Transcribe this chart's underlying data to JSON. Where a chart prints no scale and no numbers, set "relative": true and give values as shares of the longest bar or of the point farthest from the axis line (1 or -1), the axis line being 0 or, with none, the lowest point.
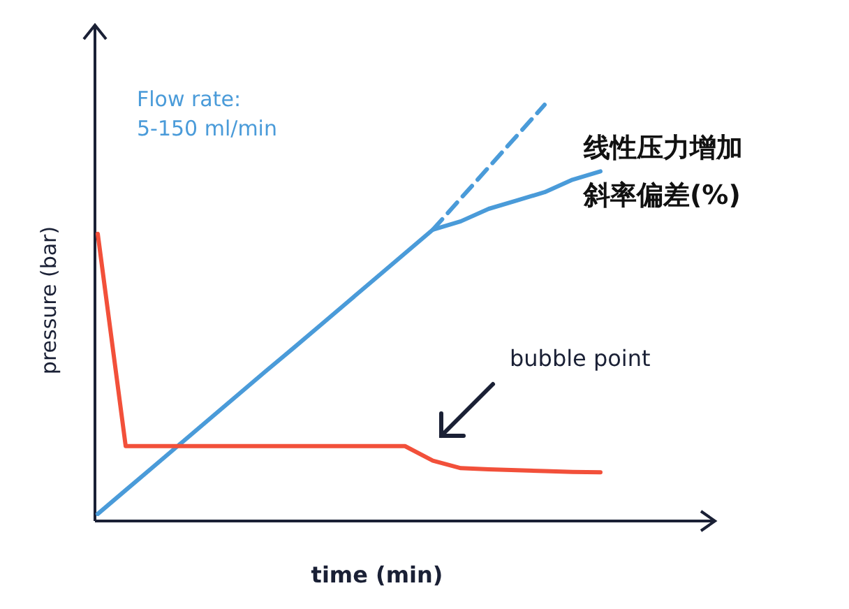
{
  "chart_data": {
    "type": "line",
    "relative": true,
    "xlabel": "time (min)",
    "ylabel": "pressure (bar)",
    "categories": [
      null,
      null,
      null,
      null,
      null,
      null,
      null,
      null,
      null,
      null,
      null,
      null,
      null,
      null,
      null,
      null,
      null,
      null,
      null,
      null,
      null
    ],
    "annotations": [
      "Flow rate:\n5-150 ml/min",
      "线性压力增加斜率偏差(%)",
      "bubble point"
    ],
    "series": [
      {
        "color": "#4a9bd9",
        "values": [
          0.017,
          0.074,
          0.131,
          0.188,
          0.245,
          0.302,
          0.359,
          0.415,
          0.472,
          0.529,
          0.586,
          0.643,
          0.7,
          0.72,
          0.75,
          0.77,
          0.79,
          0.82,
          0.84,
          null,
          null
        ]
      },
      {
        "color": "#4a9bd9",
        "line_style": "dashed",
        "values": [
          null,
          null,
          null,
          null,
          null,
          null,
          null,
          null,
          null,
          null,
          null,
          null,
          0.7,
          0.775,
          0.85,
          0.925,
          1.0,
          null,
          null,
          null,
          null
        ]
      },
      {
        "color": "#f2503a",
        "values": [
          0.69,
          0.18,
          0.18,
          0.18,
          0.18,
          0.18,
          0.18,
          0.18,
          0.18,
          0.18,
          0.18,
          0.18,
          0.145,
          0.127,
          0.124,
          0.122,
          0.12,
          0.118,
          0.117,
          null,
          null
        ]
      }
    ]
  }
}
